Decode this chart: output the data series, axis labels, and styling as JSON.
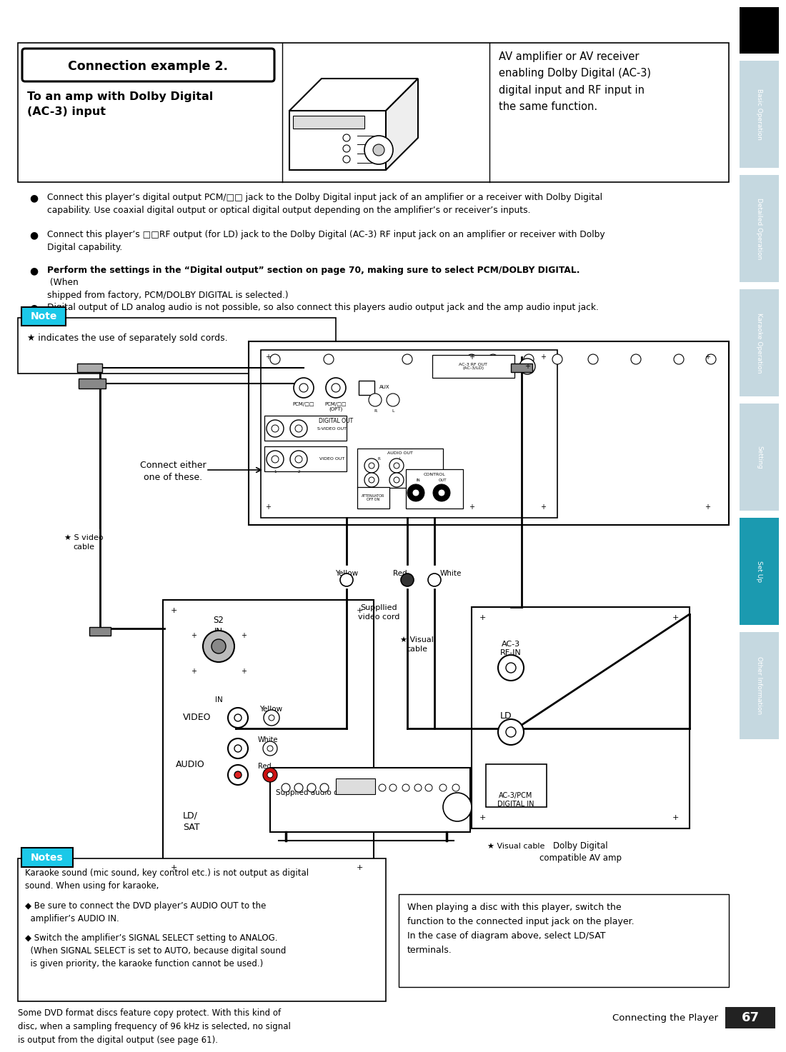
{
  "page_bg": "#ffffff",
  "page_width": 10.8,
  "page_height": 14.37,
  "tab_labels": [
    "Basic Operation",
    "Detailed Operation",
    "Karaoke Operation",
    "Setting",
    "Set Up",
    "Other Information"
  ],
  "tab_colors": [
    "#c5d8e0",
    "#c5d8e0",
    "#c5d8e0",
    "#c5d8e0",
    "#1b9ab0",
    "#c5d8e0"
  ],
  "tab_active_index": 4,
  "page_number": "67",
  "page_number_label": "Connecting the Player",
  "title_box_text": "Connection example 2.",
  "subtitle_text": "To an amp with Dolby Digital\n(AC-3) input",
  "header_desc": "AV amplifier or AV receiver\nenabling Dolby Digital (AC-3)\ndigital input and RF input in\nthe same function.",
  "bullet1": "Connect this player’s digital output PCM/□□ jack to the Dolby Digital input jack of an amplifier or a receiver with Dolby Digital\ncapability. Use coaxial digital output or optical digital output depending on the amplifier’s or receiver’s inputs.",
  "bullet2": "Connect this player’s □□RF output (for LD) jack to the Dolby Digital (AC-3) RF input jack on an amplifier or receiver with Dolby\nDigital capability.",
  "bullet3_bold": "Perform the settings in the “Digital output” section on page 70, making sure to select PCM/DOLBY DIGITAL.",
  "bullet3_normal": " (When\nshipped from factory, PCM/DOLBY DIGITAL is selected.)",
  "bullet4": "Digital output of LD analog audio is not possible, so also connect this players audio output jack and the amp audio input jack.",
  "note_label": "Note",
  "note_text": "★ indicates the use of separately sold cords.",
  "notes_label": "Notes",
  "notes_text": "Karaoke sound (mic sound, key control etc.) is not output as digital\nsound. When using for karaoke,",
  "notes_b1": "◆ Be sure to connect the DVD player’s AUDIO OUT to the\n  amplifier’s AUDIO IN.",
  "notes_b2": "◆ Switch the amplifier’s SIGNAL SELECT setting to ANALOG.\n  (When SIGNAL SELECT is set to AUTO, because digital sound\n  is given priority, the karaoke function cannot be used.)",
  "bottom_left": "Some DVD format discs feature copy protect. With this kind of\ndisc, when a sampling frequency of 96 kHz is selected, no signal\nis output from the digital output (see page 61).",
  "bottom_right": "When playing a disc with this player, switch the\nfunction to the connected input jack on the player.\nIn the case of diagram above, select LD/SAT\nterminals.",
  "visual_cable_note": "★ Visual cable",
  "connect_either": "Connect either\none of these.",
  "s_video_cable": "★ S video\ncable",
  "yellow_lbl": "Yellow",
  "red_lbl": "Red",
  "white_lbl": "White",
  "supplied_video": "Suppllied\nvideo cord",
  "visual_cable": "★ Visual\ncable",
  "s2_in": "S2\nIN",
  "in_lbl": "IN",
  "video_lbl": "VIDEO",
  "audio_lbl": "AUDIO",
  "yellow2": "Yellow",
  "white2": "White",
  "red2": "Red",
  "ldsat": "LD/\nSAT",
  "supplied_audio": "Supplied audio cord",
  "ac3_rfin": "AC-3\nRF-IN",
  "ld_lbl": "LD",
  "ac3pcm": "AC-3/PCM\nDIGITAL IN",
  "dolby_amp": "Dolby Digital\ncompatible AV amp"
}
